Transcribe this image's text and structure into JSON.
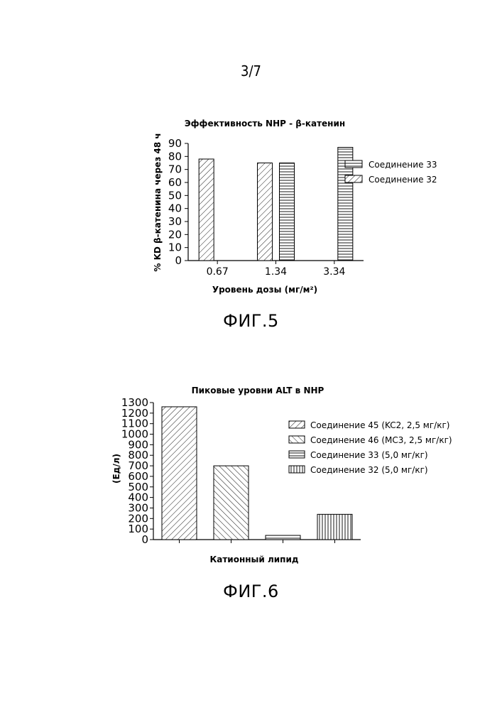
{
  "page_number": "3/7",
  "figures": [
    {
      "label": "ФИГ.5"
    },
    {
      "label": "ФИГ.6"
    }
  ],
  "chart_data": [
    {
      "type": "bar",
      "title": "Эффективность NHP - β-катенин",
      "xlabel": "Уровень дозы (мг/м²)",
      "ylabel": "% KD β-катенина через 48 ч",
      "categories": [
        "0.67",
        "1.34",
        "3.34"
      ],
      "ylim": [
        0,
        90
      ],
      "yticks": [
        0,
        10,
        20,
        30,
        40,
        50,
        60,
        70,
        80,
        90
      ],
      "grid": false,
      "legend_position": "right",
      "series": [
        {
          "name": "Соединение 33",
          "values": [
            null,
            75,
            87
          ],
          "pattern": "horizontal-lines"
        },
        {
          "name": "Соединение 32",
          "values": [
            78,
            75,
            null
          ],
          "pattern": "diagonal-lines"
        }
      ]
    },
    {
      "type": "bar",
      "title": "Пиковые уровни ALT в NHP",
      "xlabel": "Катионный липид",
      "ylabel": "(Ед/л)",
      "ylim": [
        0,
        1300
      ],
      "yticks": [
        0,
        100,
        200,
        300,
        400,
        500,
        600,
        700,
        800,
        900,
        1000,
        1100,
        1200,
        1300
      ],
      "grid": false,
      "legend_position": "right",
      "series": [
        {
          "name": "Соединение 45 (KC2, 2,5 мг/кг)",
          "value": 1260,
          "pattern": "diagonal-left"
        },
        {
          "name": "Соединение 46 (MC3, 2,5 мг/кг)",
          "value": 700,
          "pattern": "diagonal-right"
        },
        {
          "name": "Соединение 33 (5,0 мг/кг)",
          "value": 40,
          "pattern": "horizontal-lines"
        },
        {
          "name": "Соединение 32 (5,0 мг/кг)",
          "value": 240,
          "pattern": "vertical-lines"
        }
      ]
    }
  ]
}
